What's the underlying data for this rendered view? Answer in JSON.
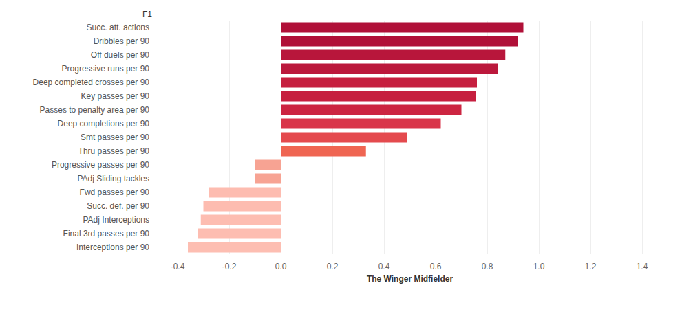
{
  "chart_data": {
    "type": "bar",
    "orientation": "horizontal",
    "title": "F1",
    "x_label": "The Winger Midfielder",
    "categories": [
      "Succ. att. actions",
      "Dribbles per 90",
      "Off duels per 90",
      "Progressive runs per 90",
      "Deep completed crosses per 90",
      "Key passes per 90",
      "Passes to penalty area per 90",
      "Deep completions per 90",
      "Smt passes per 90",
      "Thru passes per 90",
      "Progressive passes per 90",
      "PAdj Sliding tackles",
      "Fwd passes per 90",
      "Succ. def. per 90",
      "PAdj Interceptions",
      "Final 3rd passes per 90",
      "Interceptions per 90"
    ],
    "values": [
      0.94,
      0.92,
      0.87,
      0.84,
      0.76,
      0.755,
      0.7,
      0.62,
      0.49,
      0.33,
      -0.1,
      -0.1,
      -0.28,
      -0.3,
      -0.31,
      -0.32,
      -0.36
    ],
    "colors": [
      "#b01038",
      "#b01038",
      "#b8163b",
      "#bb183c",
      "#c61f3f",
      "#c61f3f",
      "#cc2541",
      "#d9354a",
      "#e44a4e",
      "#ef6552",
      "#f7a393",
      "#f7a393",
      "#fdbcb0",
      "#fdbcb0",
      "#fdbdb1",
      "#fdbdb1",
      "#fdbeb2"
    ],
    "xlim": [
      -0.4,
      1.4
    ],
    "xticks": [
      -0.4,
      -0.2,
      {
        "value": 0,
        "label": "0.0"
      },
      0.2,
      0.4,
      0.6,
      0.8,
      {
        "value": 1,
        "label": "1.0"
      },
      1.2,
      1.4
    ],
    "grid": true
  }
}
